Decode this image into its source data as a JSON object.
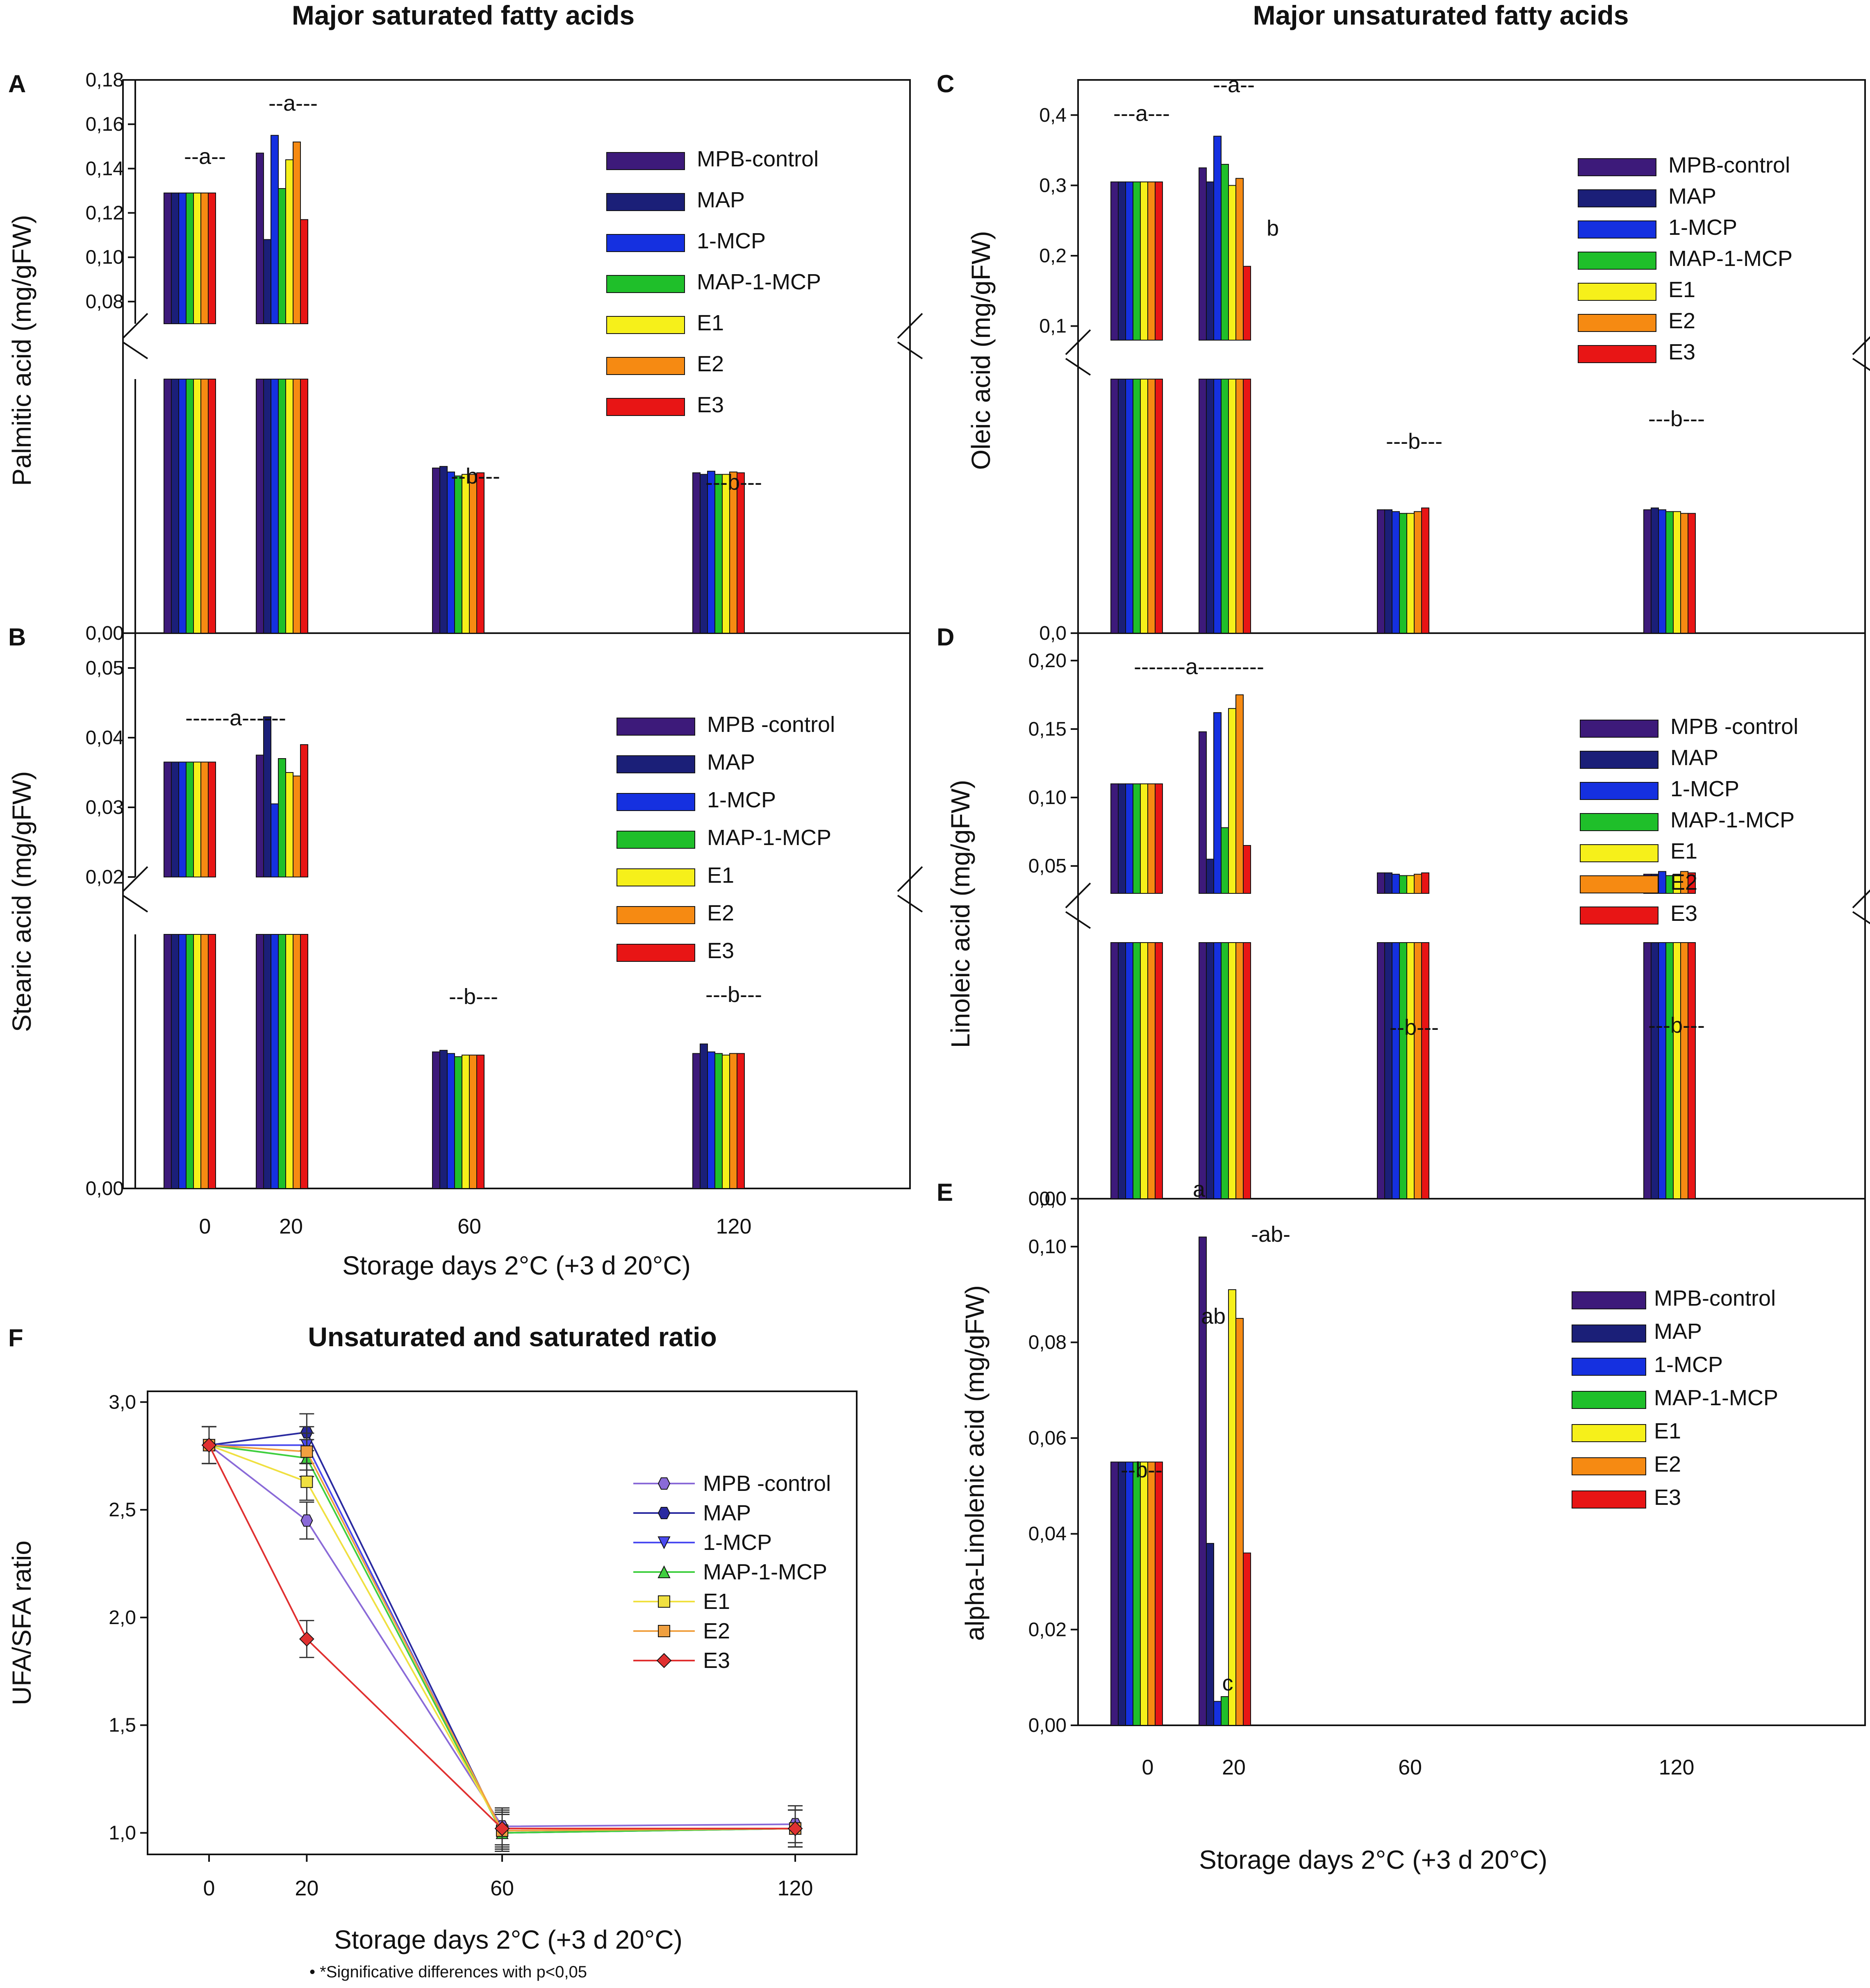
{
  "titles": {
    "saturated": "Major saturated fatty acids",
    "unsaturated": "Major unsaturated fatty acids",
    "ratio": "Unsaturated and saturated ratio"
  },
  "footnote": "*Significative differences with p<0,05",
  "colors": {
    "MPB-control": "#3d1a7a",
    "MAP": "#1b1f78",
    "1-MCP": "#1530e0",
    "MAP-1-MCP": "#1fbf2a",
    "E1": "#f6f01a",
    "E2": "#f68a12",
    "E3": "#e81515"
  },
  "chart_data": [
    {
      "panel": "A",
      "type": "bar",
      "title": "Major saturated fatty acids",
      "ylabel": "Palmitic acid (mg/gFW)",
      "xlabel": "",
      "categories": [
        "0",
        "20",
        "60",
        "120"
      ],
      "yticks": [
        "0,08",
        "0,10",
        "0,12",
        "0,14",
        "0,16",
        "0,18"
      ],
      "bottom_tick": "0,00",
      "ylim_upper": [
        0.07,
        0.18
      ],
      "legend": [
        "MPB-control",
        "MAP",
        "1-MCP",
        "MAP-1-MCP",
        "E1",
        "E2",
        "E3"
      ],
      "series": [
        {
          "name": "MPB-control",
          "values": [
            0.129,
            0.147,
            0.0208,
            0.0202
          ]
        },
        {
          "name": "MAP",
          "values": [
            0.129,
            0.108,
            0.021,
            0.02
          ]
        },
        {
          "name": "1-MCP",
          "values": [
            0.129,
            0.155,
            0.0203,
            0.0204
          ]
        },
        {
          "name": "MAP-1-MCP",
          "values": [
            0.129,
            0.131,
            0.0198,
            0.02
          ]
        },
        {
          "name": "E1",
          "values": [
            0.129,
            0.144,
            0.02,
            0.02
          ]
        },
        {
          "name": "E2",
          "values": [
            0.129,
            0.152,
            0.02,
            0.0203
          ]
        },
        {
          "name": "E3",
          "values": [
            0.129,
            0.117,
            0.0202,
            0.0202
          ]
        }
      ],
      "group_labels": [
        "--a--",
        "--a---",
        "--b---",
        "---b---"
      ]
    },
    {
      "panel": "B",
      "type": "bar",
      "ylabel": "Stearic acid (mg/gFW)",
      "xlabel": "Storage days 2°C (+3 d 20°C)",
      "categories": [
        "0",
        "20",
        "60",
        "120"
      ],
      "yticks": [
        "0,02",
        "0,03",
        "0,04",
        "0,05"
      ],
      "bottom_tick": "0,00",
      "ylim_upper": [
        0.02,
        0.055
      ],
      "legend": [
        "MPB -control",
        "MAP",
        "1-MCP",
        "MAP-1-MCP",
        "E1",
        "E2",
        "E3"
      ],
      "series": [
        {
          "name": "MPB -control",
          "values": [
            0.0365,
            0.0375,
            0.0086,
            0.0085
          ]
        },
        {
          "name": "MAP",
          "values": [
            0.0365,
            0.043,
            0.0087,
            0.0091
          ]
        },
        {
          "name": "1-MCP",
          "values": [
            0.0365,
            0.0305,
            0.0085,
            0.0086
          ]
        },
        {
          "name": "MAP-1-MCP",
          "values": [
            0.0365,
            0.037,
            0.0083,
            0.0085
          ]
        },
        {
          "name": "E1",
          "values": [
            0.0365,
            0.035,
            0.0084,
            0.0084
          ]
        },
        {
          "name": "E2",
          "values": [
            0.0365,
            0.0345,
            0.0084,
            0.0085
          ]
        },
        {
          "name": "E3",
          "values": [
            0.0365,
            0.039,
            0.0084,
            0.0085
          ]
        }
      ],
      "group_labels": [
        "------a------",
        "--b---",
        "---b---"
      ]
    },
    {
      "panel": "C",
      "type": "bar",
      "title": "Major unsaturated fatty acids",
      "ylabel": "Oleic acid (mg/gFW)",
      "xlabel": "",
      "categories": [
        "0",
        "20",
        "60",
        "120"
      ],
      "yticks": [
        "0,1",
        "0,2",
        "0,3",
        "0,4"
      ],
      "bottom_tick": "0,0",
      "ylim_upper": [
        0.08,
        0.45
      ],
      "legend": [
        "MPB-control",
        "MAP",
        "1-MCP",
        "MAP-1-MCP",
        "E1",
        "E2",
        "E3"
      ],
      "series": [
        {
          "name": "MPB-control",
          "values": [
            0.305,
            0.325,
            0.068,
            0.068
          ]
        },
        {
          "name": "MAP",
          "values": [
            0.305,
            0.305,
            0.068,
            0.069
          ]
        },
        {
          "name": "1-MCP",
          "values": [
            0.305,
            0.37,
            0.067,
            0.068
          ]
        },
        {
          "name": "MAP-1-MCP",
          "values": [
            0.305,
            0.33,
            0.066,
            0.067
          ]
        },
        {
          "name": "E1",
          "values": [
            0.305,
            0.3,
            0.066,
            0.067
          ]
        },
        {
          "name": "E2",
          "values": [
            0.305,
            0.31,
            0.067,
            0.066
          ]
        },
        {
          "name": "E3",
          "values": [
            0.305,
            0.185,
            0.069,
            0.066
          ]
        }
      ],
      "group_labels": [
        "---a---",
        "--a--",
        "b",
        "---b---",
        "---b---"
      ]
    },
    {
      "panel": "D",
      "type": "bar",
      "ylabel": "Linoleic acid  (mg/gFW)",
      "xlabel": "",
      "categories": [
        "0",
        "20",
        "60",
        "120"
      ],
      "yticks": [
        "0,05",
        "0,10",
        "0,15",
        "0,20"
      ],
      "bottom_tick": "0,0",
      "ylim_upper": [
        0.03,
        0.22
      ],
      "legend": [
        "MPB -control",
        "MAP",
        "1-MCP",
        "MAP-1-MCP",
        "E1",
        "E2",
        "E3"
      ],
      "series": [
        {
          "name": "MPB -control",
          "values": [
            0.11,
            0.148,
            0.045,
            0.044
          ]
        },
        {
          "name": "MAP",
          "values": [
            0.11,
            0.055,
            0.045,
            0.044
          ]
        },
        {
          "name": "1-MCP",
          "values": [
            0.11,
            0.162,
            0.044,
            0.046
          ]
        },
        {
          "name": "MAP-1-MCP",
          "values": [
            0.11,
            0.078,
            0.043,
            0.043
          ]
        },
        {
          "name": "E1",
          "values": [
            0.11,
            0.165,
            0.043,
            0.044
          ]
        },
        {
          "name": "E2",
          "values": [
            0.11,
            0.175,
            0.044,
            0.046
          ]
        },
        {
          "name": "E3",
          "values": [
            0.11,
            0.065,
            0.045,
            0.045
          ]
        }
      ],
      "group_labels": [
        "-------a---------",
        "--b---",
        "---b---"
      ]
    },
    {
      "panel": "E",
      "type": "bar",
      "ylabel": "alpha-Linolenic acid (mg/gFW)",
      "xlabel": "Storage days 2°C (+3 d 20°C)",
      "categories": [
        "0",
        "20",
        "60",
        "120"
      ],
      "yticks": [
        "0,00",
        "0,02",
        "0,04",
        "0,06",
        "0,08",
        "0,10"
      ],
      "top_tick": "0,00",
      "ylim": [
        0,
        0.11
      ],
      "legend": [
        "MPB-control",
        "MAP",
        "1-MCP",
        "MAP-1-MCP",
        "E1",
        "E2",
        "E3"
      ],
      "series": [
        {
          "name": "MPB-control",
          "values": [
            0.055,
            0.102,
            null,
            null
          ]
        },
        {
          "name": "MAP",
          "values": [
            0.055,
            0.038,
            null,
            null
          ]
        },
        {
          "name": "1-MCP",
          "values": [
            0.055,
            0.005,
            null,
            null
          ]
        },
        {
          "name": "MAP-1-MCP",
          "values": [
            0.055,
            0.006,
            null,
            null
          ]
        },
        {
          "name": "E1",
          "values": [
            0.055,
            0.091,
            null,
            null
          ]
        },
        {
          "name": "E2",
          "values": [
            0.055,
            0.085,
            null,
            null
          ]
        },
        {
          "name": "E3",
          "values": [
            0.055,
            0.036,
            null,
            null
          ]
        }
      ],
      "group_labels": [
        "--b--",
        "a",
        "ab",
        "c",
        "-ab-"
      ]
    },
    {
      "panel": "F",
      "type": "line",
      "title": "Unsaturated and saturated ratio",
      "ylabel": "UFA/SFA ratio",
      "xlabel": "Storage days 2°C (+3 d 20°C)",
      "x": [
        0,
        20,
        60,
        120
      ],
      "xticks": [
        "0",
        "20",
        "60",
        "120"
      ],
      "yticks": [
        "1,0",
        "1,5",
        "2,0",
        "2,5",
        "3,0"
      ],
      "ylim": [
        0.9,
        3.05
      ],
      "legend": [
        "MPB -control",
        " MAP",
        "1-MCP",
        "MAP-1-MCP",
        "E1",
        "E2",
        "E3"
      ],
      "series": [
        {
          "name": "MPB -control",
          "values": [
            2.8,
            2.45,
            1.03,
            1.04
          ]
        },
        {
          "name": "MAP",
          "values": [
            2.8,
            2.86,
            1.0,
            1.02
          ]
        },
        {
          "name": "1-MCP",
          "values": [
            2.8,
            2.8,
            1.0,
            1.02
          ]
        },
        {
          "name": "MAP-1-MCP",
          "values": [
            2.8,
            2.74,
            1.0,
            1.02
          ]
        },
        {
          "name": "E1",
          "values": [
            2.8,
            2.63,
            1.01,
            1.02
          ]
        },
        {
          "name": "E2",
          "values": [
            2.8,
            2.77,
            1.01,
            1.02
          ]
        },
        {
          "name": "E3",
          "values": [
            2.8,
            1.9,
            1.02,
            1.02
          ]
        }
      ]
    }
  ]
}
